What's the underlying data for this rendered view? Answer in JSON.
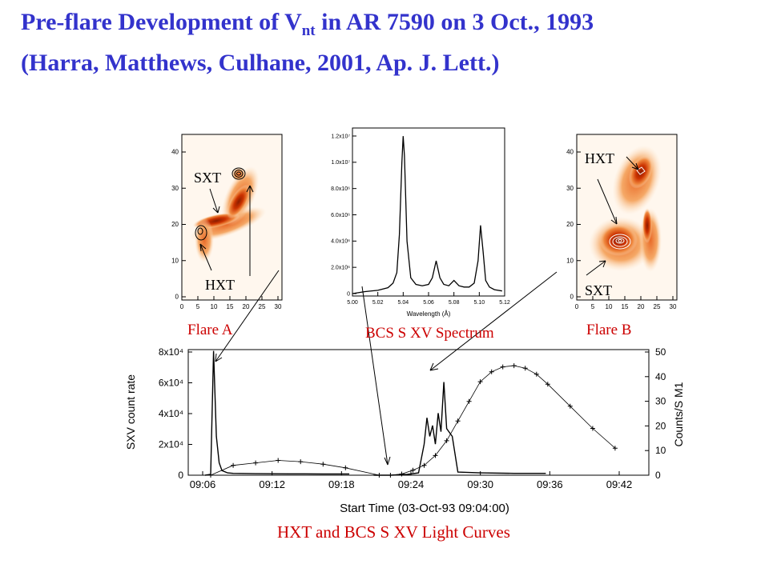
{
  "title": {
    "line1_pre": "Pre-flare Development  of V",
    "line1_sub": "nt",
    "line1_post": " in AR 7590 on 3 Oct., 1993",
    "line2": "(Harra, Matthews, Culhane, 2001, Ap. J. Lett.)"
  },
  "colors": {
    "title": "#3333cc",
    "annotation": "#cc0000",
    "map_hot": "#cc3300"
  },
  "panels": {
    "flare_a": {
      "caption": "Flare A",
      "labels": {
        "sxt": "SXT",
        "hxt": "HXT"
      },
      "x_ticks": [
        "0",
        "5",
        "10",
        "15",
        "20",
        "25",
        "30"
      ],
      "y_ticks": [
        "0",
        "10",
        "20",
        "30",
        "40"
      ]
    },
    "spectrum": {
      "caption": "BCS S XV Spectrum",
      "xlabel": "Wavelength (Å)",
      "x_ticks": [
        "5.00",
        "5.02",
        "5.04",
        "5.06",
        "5.08",
        "5.10",
        "5.12"
      ],
      "y_ticks": [
        "0",
        "2.0x10⁶",
        "4.0x10⁶",
        "6.0x10⁶",
        "8.0x10⁶",
        "1.0x10⁷",
        "1.2x10⁷"
      ]
    },
    "flare_b": {
      "caption": "Flare B",
      "labels": {
        "sxt": "SXT",
        "hxt": "HXT"
      },
      "x_ticks": [
        "0",
        "5",
        "10",
        "15",
        "20",
        "25",
        "30"
      ],
      "y_ticks": [
        "0",
        "10",
        "20",
        "30",
        "40"
      ]
    },
    "light_curves": {
      "caption": "HXT and BCS S XV Light Curves",
      "xlabel": "Start Time (03-Oct-93 09:04:00)",
      "ylabel_left": "SXV count rate",
      "ylabel_right": "Counts/S M1",
      "x_ticks": [
        "09:06",
        "09:12",
        "09:18",
        "09:24",
        "09:30",
        "09:36",
        "09:42"
      ],
      "y_left_ticks": [
        "0",
        "2x10⁴",
        "4x10⁴",
        "6x10⁴",
        "8x10⁴"
      ],
      "y_right_ticks": [
        "0",
        "10",
        "20",
        "30",
        "40",
        "50"
      ]
    }
  },
  "chart_data": [
    {
      "type": "line",
      "title": "",
      "xlabel": "Wavelength (Å)",
      "ylabel": "",
      "xlim": [
        5.0,
        5.12
      ],
      "ylim": [
        0,
        12500000.0
      ],
      "series": [
        {
          "x": [
            5.0,
            5.01,
            5.02,
            5.028,
            5.032,
            5.035,
            5.037,
            5.039,
            5.04,
            5.041,
            5.043,
            5.046,
            5.05,
            5.055,
            5.06,
            5.063,
            5.066,
            5.069,
            5.072,
            5.076,
            5.08,
            5.084,
            5.088,
            5.092,
            5.096,
            5.099,
            5.101,
            5.103,
            5.105,
            5.108,
            5.112,
            5.118
          ],
          "y": [
            0,
            150000,
            250000,
            450000,
            800000,
            1600000,
            4500000,
            10000000,
            12000000,
            10500000,
            4000000,
            1200000,
            700000,
            600000,
            700000,
            1200000,
            2500000,
            1200000,
            700000,
            600000,
            1000000,
            600000,
            500000,
            500000,
            800000,
            2500000,
            5200000,
            3200000,
            1000000,
            500000,
            300000,
            200000
          ]
        }
      ]
    },
    {
      "type": "line",
      "title": "",
      "xlabel": "Start Time (03-Oct-93 09:04:00)",
      "ylabel": "SXV count rate",
      "y2label": "Counts/S M1",
      "xlim": [
        "09:04",
        "09:45"
      ],
      "ylim": [
        0,
        85000
      ],
      "y2lim": [
        0,
        52
      ],
      "series": [
        {
          "x": [
            "09:05:30",
            "09:06:00",
            "09:06:15",
            "09:06:30",
            "09:06:45",
            "09:07:00",
            "09:07:30",
            "09:08:00",
            "09:10:00",
            "09:13:00",
            "09:16:00",
            "09:18:20"
          ],
          "y": [
            0,
            500,
            80000,
            25000,
            8000,
            3000,
            1500,
            1200,
            1000,
            900,
            800,
            800
          ]
        },
        {
          "x": [
            "09:20:30",
            "09:22:00",
            "09:23:30",
            "09:24:30",
            "09:25:00",
            "09:25:15",
            "09:25:30",
            "09:25:45",
            "09:26:00",
            "09:26:15",
            "09:26:30",
            "09:26:45",
            "09:27:00",
            "09:27:30",
            "09:28:00",
            "09:30:00",
            "09:33:00",
            "09:35:50"
          ],
          "y": [
            0,
            0,
            500,
            1500,
            20000,
            37000,
            25000,
            32000,
            20000,
            40000,
            28000,
            60000,
            30000,
            25000,
            2000,
            1500,
            1200,
            1200
          ]
        },
        {
          "x": [
            "09:06",
            "09:08",
            "09:10",
            "09:12",
            "09:14",
            "09:16",
            "09:18",
            "09:21",
            "09:22",
            "09:23",
            "09:24",
            "09:25",
            "09:26",
            "09:27",
            "09:28",
            "09:29",
            "09:30",
            "09:31",
            "09:32",
            "09:33",
            "09:34",
            "09:35",
            "09:36",
            "09:38",
            "09:40",
            "09:42"
          ],
          "y2": [
            0,
            4,
            5,
            6,
            5.5,
            4.5,
            3,
            0,
            0,
            0.5,
            2,
            4,
            8,
            14,
            22,
            30,
            38,
            42,
            44,
            44.5,
            43.5,
            41,
            37,
            28,
            19,
            11
          ]
        }
      ]
    }
  ]
}
